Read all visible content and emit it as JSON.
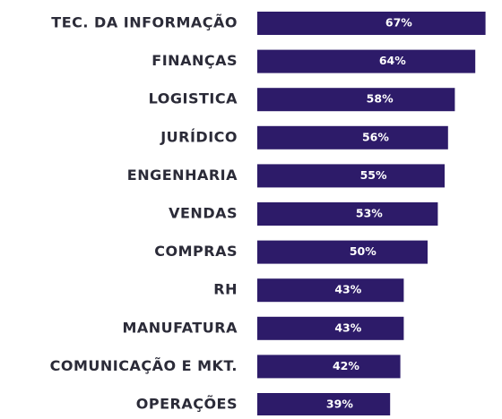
{
  "chart_data": {
    "type": "bar",
    "orientation": "horizontal",
    "categories": [
      "TEC. DA INFORMAÇÃO",
      "FINANÇAS",
      "LOGISTICA",
      "JURÍDICO",
      "ENGENHARIA",
      "VENDAS",
      "COMPRAS",
      "RH",
      "MANUFATURA",
      "COMUNICAÇÃO E MKT.",
      "OPERAÇÕES"
    ],
    "values": [
      67,
      64,
      58,
      56,
      55,
      53,
      50,
      43,
      43,
      42,
      39
    ],
    "value_labels": [
      "67%",
      "64%",
      "58%",
      "56%",
      "55%",
      "53%",
      "50%",
      "43%",
      "43%",
      "42%",
      "39%"
    ],
    "color": "#2d1b69"
  }
}
